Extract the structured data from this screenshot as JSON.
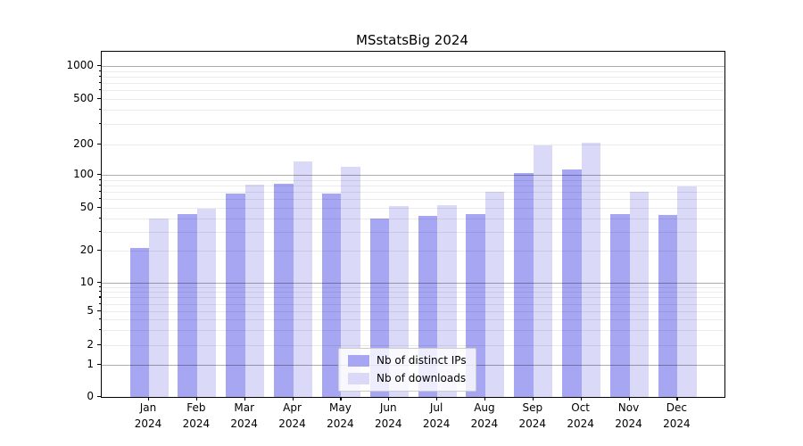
{
  "title": "MSstatsBig 2024",
  "chart_data": {
    "type": "bar",
    "title": "MSstatsBig 2024",
    "categories": [
      "Jan",
      "Feb",
      "Mar",
      "Apr",
      "May",
      "Jun",
      "Jul",
      "Aug",
      "Sep",
      "Oct",
      "Nov",
      "Dec"
    ],
    "year_label": "2024",
    "series": [
      {
        "name": "Nb of distinct IPs",
        "color": "#a6a6f2",
        "values": [
          21,
          44,
          67,
          83,
          67,
          40,
          42,
          44,
          105,
          112,
          44,
          43
        ]
      },
      {
        "name": "Nb of downloads",
        "color": "#dadaf8",
        "values": [
          40,
          49,
          82,
          135,
          120,
          52,
          53,
          70,
          195,
          205,
          70,
          78
        ]
      }
    ],
    "yscale": "symlog",
    "y_ticks": [
      0,
      1,
      2,
      5,
      10,
      20,
      50,
      100,
      200,
      500,
      1000
    ],
    "ylim": [
      0,
      1400
    ],
    "grid": true,
    "legend_position": "lower center",
    "colors": {
      "major_grid": "rgba(0,0,0,0.32)",
      "minor_grid": "rgba(0,0,0,0.08)",
      "axis": "#000000",
      "background": "#ffffff"
    }
  }
}
